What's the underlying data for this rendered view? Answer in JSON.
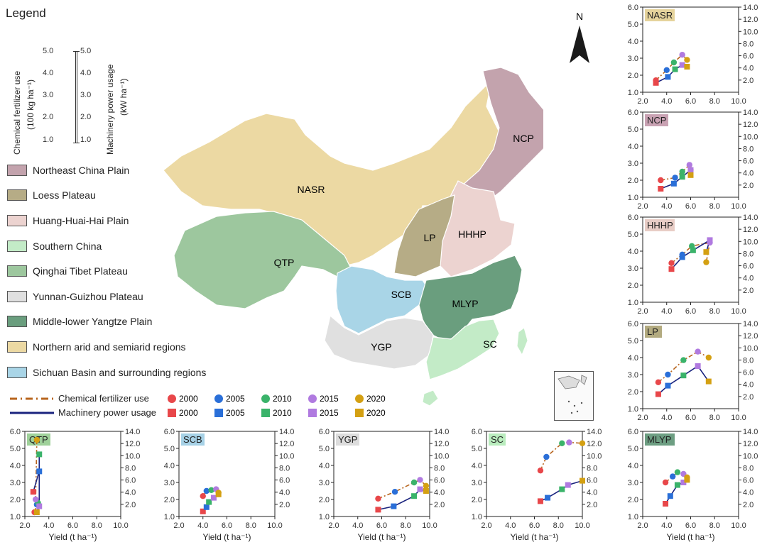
{
  "legend": {
    "title": "Legend",
    "fertilizer_axis_label": "Chemical fertilizer use",
    "fertilizer_axis_unit": "(100 kg ha⁻¹)",
    "machinery_axis_label": "Machinery power usage",
    "machinery_axis_unit": "(kW ha⁻¹)",
    "scale_ticks": [
      "5.0",
      "4.0",
      "3.0",
      "2.0",
      "1.0"
    ],
    "regions": [
      {
        "label": "Northeast China Plain",
        "color": "#c3a3ad"
      },
      {
        "label": "Loess Plateau",
        "color": "#b6ac86"
      },
      {
        "label": "Huang-Huai-Hai Plain",
        "color": "#ecd3d0"
      },
      {
        "label": "Southern China",
        "color": "#c3ebc7"
      },
      {
        "label": "Qinghai Tibet Plateau",
        "color": "#9dc79e"
      },
      {
        "label": "Yunnan-Guizhou Plateau",
        "color": "#e0e0e0"
      },
      {
        "label": "Middle-lower Yangtze Plain",
        "color": "#6a9e7e"
      },
      {
        "label": "Northern arid and semiarid regions",
        "color": "#ecd9a3"
      },
      {
        "label": "Sichuan Basin and surrounding regions",
        "color": "#a9d5e7"
      }
    ],
    "series": {
      "fertilizer_label": "Chemical fertilizer use",
      "machinery_label": "Machinery power usage",
      "fertilizer_line_color": "#b8651e",
      "machinery_line_color": "#1a237e",
      "years": [
        "2000",
        "2005",
        "2010",
        "2015",
        "2020"
      ],
      "year_colors": [
        "#e8474a",
        "#2a6fd8",
        "#3ab36a",
        "#b07ae0",
        "#d4a012"
      ]
    }
  },
  "map": {
    "north_label": "N",
    "region_labels": [
      "NCP",
      "NASR",
      "LP",
      "HHHP",
      "QTP",
      "SCB",
      "MLYP",
      "YGP",
      "SC"
    ]
  },
  "chart_data": [
    {
      "type": "scatter",
      "region": "NASR",
      "title": "NASR",
      "title_bg": "#e5d39c",
      "xlabel": "",
      "xlim": [
        2.0,
        10.0
      ],
      "ylim_left": [
        1.0,
        6.0
      ],
      "ylim_right": [
        0.0,
        14.0
      ],
      "x_ticks": [
        "2.0",
        "4.0",
        "6.0",
        "8.0",
        "10.0"
      ],
      "y_left_ticks": [
        "1.0",
        "2.0",
        "3.0",
        "4.0",
        "5.0",
        "6.0"
      ],
      "y_right_ticks": [
        "2.0",
        "4.0",
        "6.0",
        "8.0",
        "10.0",
        "12.0",
        "14.0"
      ],
      "series": [
        {
          "name": "Chemical fertilizer use",
          "x": [
            3.1,
            4.0,
            4.6,
            5.3,
            5.7
          ],
          "y": [
            1.7,
            2.3,
            2.75,
            3.2,
            2.9
          ]
        },
        {
          "name": "Machinery power usage",
          "x": [
            3.1,
            4.1,
            4.7,
            5.3,
            5.7
          ],
          "y": [
            1.55,
            1.9,
            2.35,
            2.6,
            2.5
          ]
        }
      ]
    },
    {
      "type": "scatter",
      "region": "NCP",
      "title": "NCP",
      "title_bg": "#c9a2b3",
      "xlabel": "",
      "xlim": [
        2.0,
        10.0
      ],
      "ylim_left": [
        1.0,
        6.0
      ],
      "ylim_right": [
        0.0,
        14.0
      ],
      "x_ticks": [
        "2.0",
        "4.0",
        "6.0",
        "8.0",
        "10.0"
      ],
      "y_left_ticks": [
        "1.0",
        "2.0",
        "3.0",
        "4.0",
        "5.0",
        "6.0"
      ],
      "y_right_ticks": [
        "2.0",
        "4.0",
        "6.0",
        "8.0",
        "10.0",
        "12.0",
        "14.0"
      ],
      "series": [
        {
          "name": "Chemical fertilizer use",
          "x": [
            3.5,
            4.7,
            5.3,
            5.9,
            6.0
          ],
          "y": [
            2.0,
            2.15,
            2.5,
            2.9,
            2.6
          ]
        },
        {
          "name": "Machinery power usage",
          "x": [
            3.5,
            4.6,
            5.3,
            6.0,
            6.0
          ],
          "y": [
            1.5,
            1.8,
            2.2,
            2.6,
            2.3
          ]
        }
      ]
    },
    {
      "type": "scatter",
      "region": "HHHP",
      "title": "HHHP",
      "title_bg": "#e8cdc6",
      "xlabel": "",
      "xlim": [
        2.0,
        10.0
      ],
      "ylim_left": [
        1.0,
        6.0
      ],
      "ylim_right": [
        0.0,
        14.0
      ],
      "x_ticks": [
        "2.0",
        "4.0",
        "6.0",
        "8.0",
        "10.0"
      ],
      "y_left_ticks": [
        "1.0",
        "2.0",
        "3.0",
        "4.0",
        "5.0",
        "6.0"
      ],
      "y_right_ticks": [
        "2.0",
        "4.0",
        "6.0",
        "8.0",
        "10.0",
        "12.0",
        "14.0"
      ],
      "series": [
        {
          "name": "Chemical fertilizer use",
          "x": [
            4.4,
            5.3,
            6.1,
            7.6,
            7.3
          ],
          "y": [
            3.3,
            3.8,
            4.3,
            4.5,
            3.35
          ]
        },
        {
          "name": "Machinery power usage",
          "x": [
            4.4,
            5.3,
            6.2,
            7.6,
            7.3
          ],
          "y": [
            2.95,
            3.65,
            4.05,
            4.65,
            3.95
          ]
        }
      ]
    },
    {
      "type": "scatter",
      "region": "LP",
      "title": "LP",
      "title_bg": "#b3ab80",
      "xlabel": "",
      "xlim": [
        2.0,
        10.0
      ],
      "ylim_left": [
        1.0,
        6.0
      ],
      "ylim_right": [
        0.0,
        14.0
      ],
      "x_ticks": [
        "2.0",
        "4.0",
        "6.0",
        "8.0",
        "10.0"
      ],
      "y_left_ticks": [
        "1.0",
        "2.0",
        "3.0",
        "4.0",
        "5.0",
        "6.0"
      ],
      "y_right_ticks": [
        "2.0",
        "4.0",
        "6.0",
        "8.0",
        "10.0",
        "12.0",
        "14.0"
      ],
      "series": [
        {
          "name": "Chemical fertilizer use",
          "x": [
            3.3,
            4.1,
            5.4,
            6.6,
            7.5
          ],
          "y": [
            2.55,
            3.0,
            3.85,
            4.35,
            4.0
          ]
        },
        {
          "name": "Machinery power usage",
          "x": [
            3.3,
            4.1,
            5.4,
            6.6,
            7.5
          ],
          "y": [
            1.85,
            2.35,
            2.95,
            3.5,
            2.6
          ]
        }
      ]
    },
    {
      "type": "scatter",
      "region": "QTP",
      "title": "QTP",
      "title_bg": "#9fd19a",
      "xlabel": "Yield (t ha⁻¹)",
      "xlim": [
        2.0,
        10.0
      ],
      "ylim_left": [
        1.0,
        6.0
      ],
      "ylim_right": [
        0.0,
        14.0
      ],
      "x_ticks": [
        "2.0",
        "4.0",
        "6.0",
        "8.0",
        "10.0"
      ],
      "y_left_ticks": [
        "1.0",
        "2.0",
        "3.0",
        "4.0",
        "5.0",
        "6.0"
      ],
      "y_right_ticks": [
        "2.0",
        "4.0",
        "6.0",
        "8.0",
        "10.0",
        "12.0",
        "14.0"
      ],
      "series": [
        {
          "name": "Chemical fertilizer use",
          "x": [
            2.8,
            3.0,
            3.1,
            2.9,
            3.0
          ],
          "y": [
            1.25,
            1.7,
            1.8,
            2.0,
            5.5
          ]
        },
        {
          "name": "Machinery power usage",
          "x": [
            2.7,
            3.2,
            3.2,
            3.2,
            3.0
          ],
          "y": [
            2.45,
            3.65,
            4.65,
            1.6,
            1.25
          ]
        }
      ]
    },
    {
      "type": "scatter",
      "region": "SCB",
      "title": "SCB",
      "title_bg": "#a6d1e6",
      "xlabel": "Yield (t ha⁻¹)",
      "xlim": [
        2.0,
        10.0
      ],
      "ylim_left": [
        1.0,
        6.0
      ],
      "ylim_right": [
        0.0,
        14.0
      ],
      "x_ticks": [
        "2.0",
        "4.0",
        "6.0",
        "8.0",
        "10.0"
      ],
      "y_left_ticks": [
        "1.0",
        "2.0",
        "3.0",
        "4.0",
        "5.0",
        "6.0"
      ],
      "y_right_ticks": [
        "2.0",
        "4.0",
        "6.0",
        "8.0",
        "10.0",
        "12.0",
        "14.0"
      ],
      "series": [
        {
          "name": "Chemical fertilizer use",
          "x": [
            4.0,
            4.3,
            4.7,
            5.1,
            5.3
          ],
          "y": [
            2.2,
            2.5,
            2.55,
            2.6,
            2.4
          ]
        },
        {
          "name": "Machinery power usage",
          "x": [
            4.0,
            4.3,
            4.5,
            4.9,
            5.3
          ],
          "y": [
            1.3,
            1.55,
            1.85,
            2.1,
            2.3
          ]
        }
      ]
    },
    {
      "type": "scatter",
      "region": "YGP",
      "title": "YGP",
      "title_bg": "#dcdcdc",
      "xlabel": "Yield (t ha⁻¹)",
      "xlim": [
        2.0,
        10.0
      ],
      "ylim_left": [
        1.0,
        6.0
      ],
      "ylim_right": [
        0.0,
        14.0
      ],
      "x_ticks": [
        "2.0",
        "4.0",
        "6.0",
        "8.0",
        "10.0"
      ],
      "y_left_ticks": [
        "1.0",
        "2.0",
        "3.0",
        "4.0",
        "5.0",
        "6.0"
      ],
      "y_right_ticks": [
        "2.0",
        "4.0",
        "6.0",
        "8.0",
        "10.0",
        "12.0",
        "14.0"
      ],
      "series": [
        {
          "name": "Chemical fertilizer use",
          "x": [
            5.7,
            7.1,
            8.7,
            9.2,
            9.7
          ],
          "y": [
            2.05,
            2.45,
            3.0,
            3.15,
            2.8
          ]
        },
        {
          "name": "Machinery power usage",
          "x": [
            5.7,
            7.0,
            8.7,
            9.2,
            9.7
          ],
          "y": [
            1.4,
            1.6,
            2.2,
            2.6,
            2.5
          ]
        }
      ]
    },
    {
      "type": "scatter",
      "region": "SC",
      "title": "SC",
      "title_bg": "#b9ecbd",
      "xlabel": "Yield (t ha⁻¹)",
      "xlim": [
        2.0,
        10.0
      ],
      "ylim_left": [
        1.0,
        6.0
      ],
      "ylim_right": [
        0.0,
        14.0
      ],
      "x_ticks": [
        "2.0",
        "4.0",
        "6.0",
        "8.0",
        "10.0"
      ],
      "y_left_ticks": [
        "1.0",
        "2.0",
        "3.0",
        "4.0",
        "5.0",
        "6.0"
      ],
      "y_right_ticks": [
        "2.0",
        "4.0",
        "6.0",
        "8.0",
        "10.0",
        "12.0",
        "14.0"
      ],
      "series": [
        {
          "name": "Chemical fertilizer use",
          "x": [
            6.5,
            7.0,
            8.3,
            8.9,
            10.0
          ],
          "y": [
            3.7,
            4.5,
            5.3,
            5.35,
            5.3
          ]
        },
        {
          "name": "Machinery power usage",
          "x": [
            6.5,
            7.1,
            8.3,
            8.8,
            10.0
          ],
          "y": [
            1.9,
            2.1,
            2.6,
            2.85,
            3.1
          ]
        }
      ]
    },
    {
      "type": "scatter",
      "region": "MLYP",
      "title": "MLYP",
      "title_bg": "#6d9e82",
      "xlabel": "Yield (t ha⁻¹)",
      "xlim": [
        2.0,
        10.0
      ],
      "ylim_left": [
        1.0,
        6.0
      ],
      "ylim_right": [
        0.0,
        14.0
      ],
      "x_ticks": [
        "2.0",
        "4.0",
        "6.0",
        "8.0",
        "10.0"
      ],
      "y_left_ticks": [
        "1.0",
        "2.0",
        "3.0",
        "4.0",
        "5.0",
        "6.0"
      ],
      "y_right_ticks": [
        "2.0",
        "4.0",
        "6.0",
        "8.0",
        "10.0",
        "12.0",
        "14.0"
      ],
      "series": [
        {
          "name": "Chemical fertilizer use",
          "x": [
            3.9,
            4.5,
            4.9,
            5.4,
            5.7
          ],
          "y": [
            3.0,
            3.35,
            3.6,
            3.5,
            3.3
          ]
        },
        {
          "name": "Machinery power usage",
          "x": [
            3.9,
            4.3,
            4.9,
            5.4,
            5.7
          ],
          "y": [
            1.75,
            2.2,
            2.85,
            3.0,
            3.15
          ]
        }
      ]
    }
  ]
}
